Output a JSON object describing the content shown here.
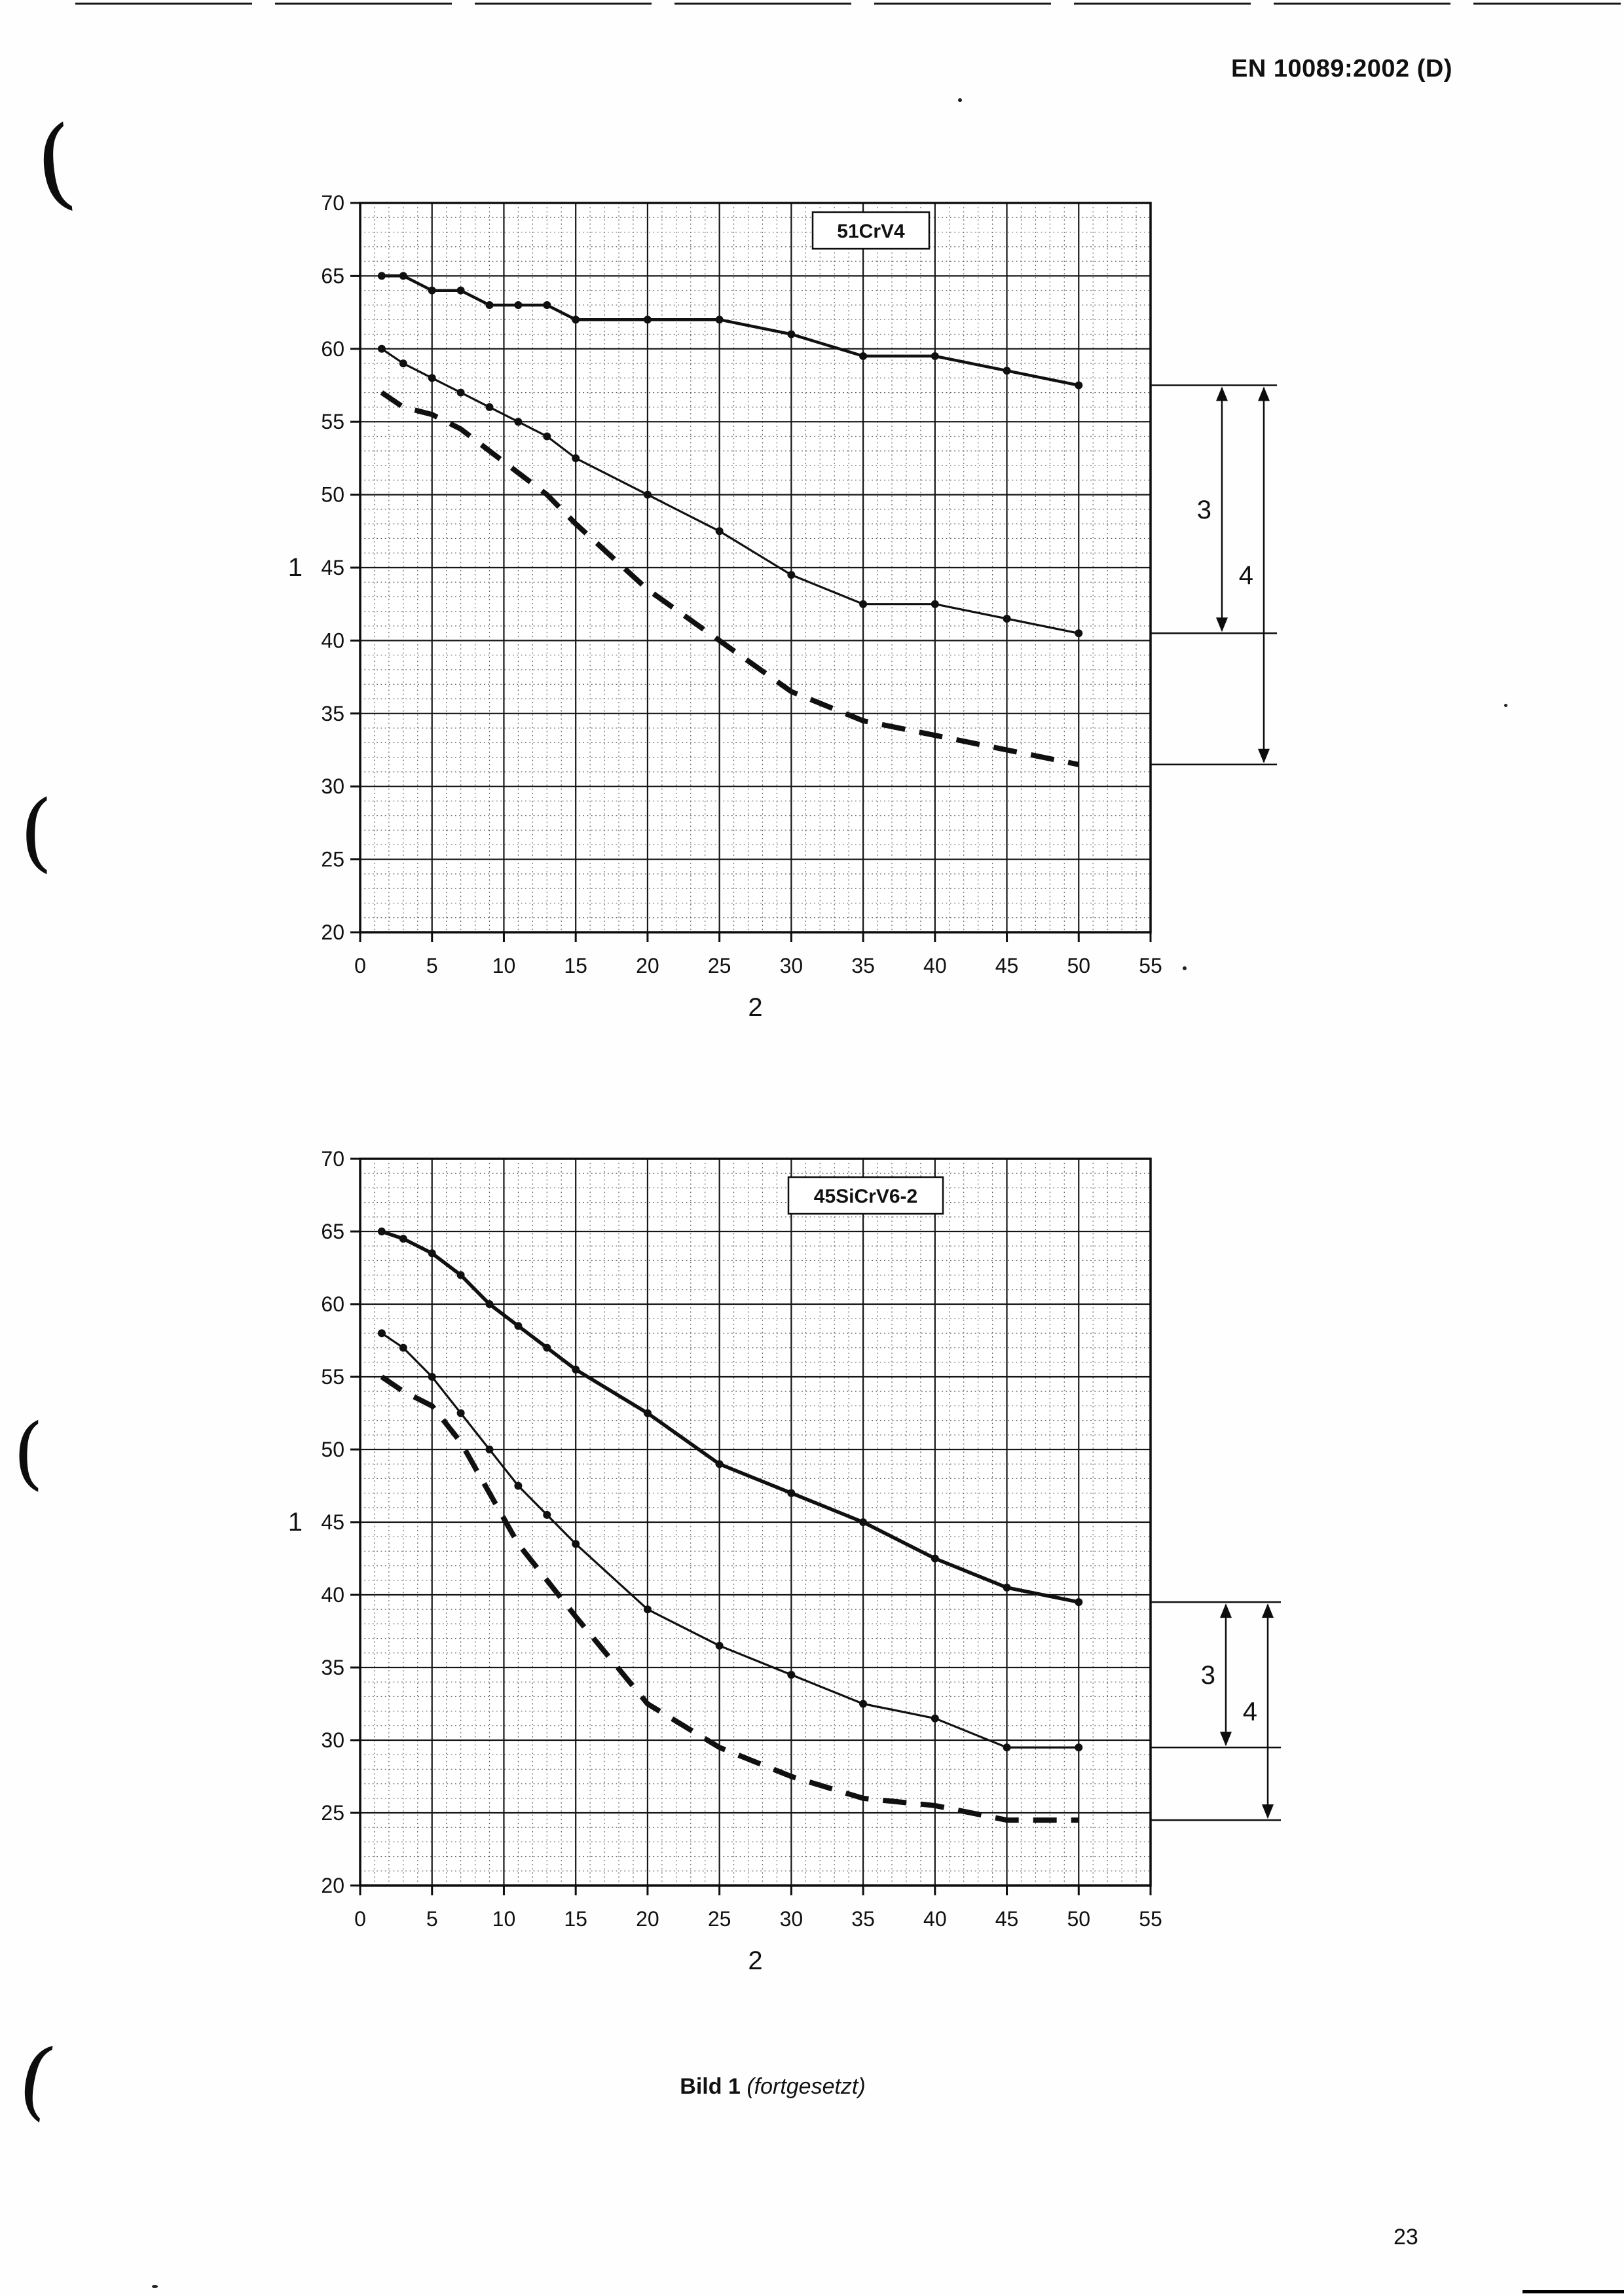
{
  "header": {
    "title": "EN 10089:2002 (D)"
  },
  "caption": {
    "label": "Bild 1",
    "note": "(fortgesetzt)"
  },
  "footer": {
    "page_number": "23"
  },
  "chart_data": [
    {
      "type": "line",
      "title_box": "51CrV4",
      "xlabel": "2",
      "ylabel": "1",
      "xlim": [
        0,
        55
      ],
      "ylim": [
        20,
        70
      ],
      "x_ticks": [
        0,
        5,
        10,
        15,
        20,
        25,
        30,
        35,
        40,
        45,
        50,
        55
      ],
      "y_ticks": [
        20,
        25,
        30,
        35,
        40,
        45,
        50,
        55,
        60,
        65,
        70
      ],
      "minor_grid_step": 1,
      "grid": true,
      "series": [
        {
          "name": "upper-limit",
          "style": "solid",
          "width": 4.5,
          "markers": true,
          "points": [
            [
              1.5,
              65
            ],
            [
              3,
              65
            ],
            [
              5,
              64
            ],
            [
              7,
              64
            ],
            [
              9,
              63
            ],
            [
              11,
              63
            ],
            [
              13,
              63
            ],
            [
              15,
              62
            ],
            [
              20,
              62
            ],
            [
              25,
              62
            ],
            [
              30,
              61
            ],
            [
              35,
              59.5
            ],
            [
              40,
              59.5
            ],
            [
              45,
              58.5
            ],
            [
              50,
              57.5
            ]
          ]
        },
        {
          "name": "middle-curve",
          "style": "solid",
          "width": 3.2,
          "markers": true,
          "points": [
            [
              1.5,
              60
            ],
            [
              3,
              59
            ],
            [
              5,
              58
            ],
            [
              7,
              57
            ],
            [
              9,
              56
            ],
            [
              11,
              55
            ],
            [
              13,
              54
            ],
            [
              15,
              52.5
            ],
            [
              20,
              50
            ],
            [
              25,
              47.5
            ],
            [
              30,
              44.5
            ],
            [
              35,
              42.5
            ],
            [
              40,
              42.5
            ],
            [
              45,
              41.5
            ],
            [
              50,
              40.5
            ]
          ]
        },
        {
          "name": "lower-limit-dashed",
          "style": "dashed",
          "width": 8,
          "markers": false,
          "points": [
            [
              1.5,
              57
            ],
            [
              3,
              56
            ],
            [
              5,
              55.5
            ],
            [
              7,
              54.5
            ],
            [
              9,
              53
            ],
            [
              11,
              51.5
            ],
            [
              13,
              50
            ],
            [
              15,
              48
            ],
            [
              20,
              43.5
            ],
            [
              25,
              40
            ],
            [
              30,
              36.5
            ],
            [
              35,
              34.5
            ],
            [
              40,
              33.5
            ],
            [
              45,
              32.5
            ],
            [
              50,
              31.5
            ]
          ]
        }
      ],
      "annotations": {
        "dim_labels": [
          "3",
          "4"
        ],
        "levels": {
          "upper": 57.5,
          "mid": 40.5,
          "lower": 31.5
        }
      }
    },
    {
      "type": "line",
      "title_box": "45SiCrV6-2",
      "xlabel": "2",
      "ylabel": "1",
      "xlim": [
        0,
        55
      ],
      "ylim": [
        20,
        70
      ],
      "x_ticks": [
        0,
        5,
        10,
        15,
        20,
        25,
        30,
        35,
        40,
        45,
        50,
        55
      ],
      "y_ticks": [
        20,
        25,
        30,
        35,
        40,
        45,
        50,
        55,
        60,
        65,
        70
      ],
      "minor_grid_step": 1,
      "grid": true,
      "series": [
        {
          "name": "upper-limit",
          "style": "solid",
          "width": 5.5,
          "markers": true,
          "points": [
            [
              1.5,
              65
            ],
            [
              3,
              64.5
            ],
            [
              5,
              63.5
            ],
            [
              7,
              62
            ],
            [
              9,
              60
            ],
            [
              11,
              58.5
            ],
            [
              13,
              57
            ],
            [
              15,
              55.5
            ],
            [
              20,
              52.5
            ],
            [
              25,
              49
            ],
            [
              30,
              47
            ],
            [
              35,
              45
            ],
            [
              40,
              42.5
            ],
            [
              45,
              40.5
            ],
            [
              50,
              39.5
            ]
          ]
        },
        {
          "name": "middle-curve",
          "style": "solid",
          "width": 3.2,
          "markers": true,
          "points": [
            [
              1.5,
              58
            ],
            [
              3,
              57
            ],
            [
              5,
              55
            ],
            [
              7,
              52.5
            ],
            [
              9,
              50
            ],
            [
              11,
              47.5
            ],
            [
              13,
              45.5
            ],
            [
              15,
              43.5
            ],
            [
              20,
              39
            ],
            [
              25,
              36.5
            ],
            [
              30,
              34.5
            ],
            [
              35,
              32.5
            ],
            [
              40,
              31.5
            ],
            [
              45,
              29.5
            ],
            [
              50,
              29.5
            ]
          ]
        },
        {
          "name": "lower-limit-dashed",
          "style": "dashed",
          "width": 8,
          "markers": false,
          "points": [
            [
              1.5,
              55
            ],
            [
              3,
              54
            ],
            [
              5,
              53
            ],
            [
              7,
              50.5
            ],
            [
              9,
              47
            ],
            [
              11,
              43.5
            ],
            [
              13,
              41
            ],
            [
              15,
              38.5
            ],
            [
              20,
              32.5
            ],
            [
              25,
              29.5
            ],
            [
              30,
              27.5
            ],
            [
              35,
              26
            ],
            [
              40,
              25.5
            ],
            [
              45,
              24.5
            ],
            [
              50,
              24.5
            ]
          ]
        }
      ],
      "annotations": {
        "dim_labels": [
          "3",
          "4"
        ],
        "levels": {
          "upper": 39.5,
          "mid": 29.5,
          "lower": 24.5
        }
      }
    }
  ]
}
